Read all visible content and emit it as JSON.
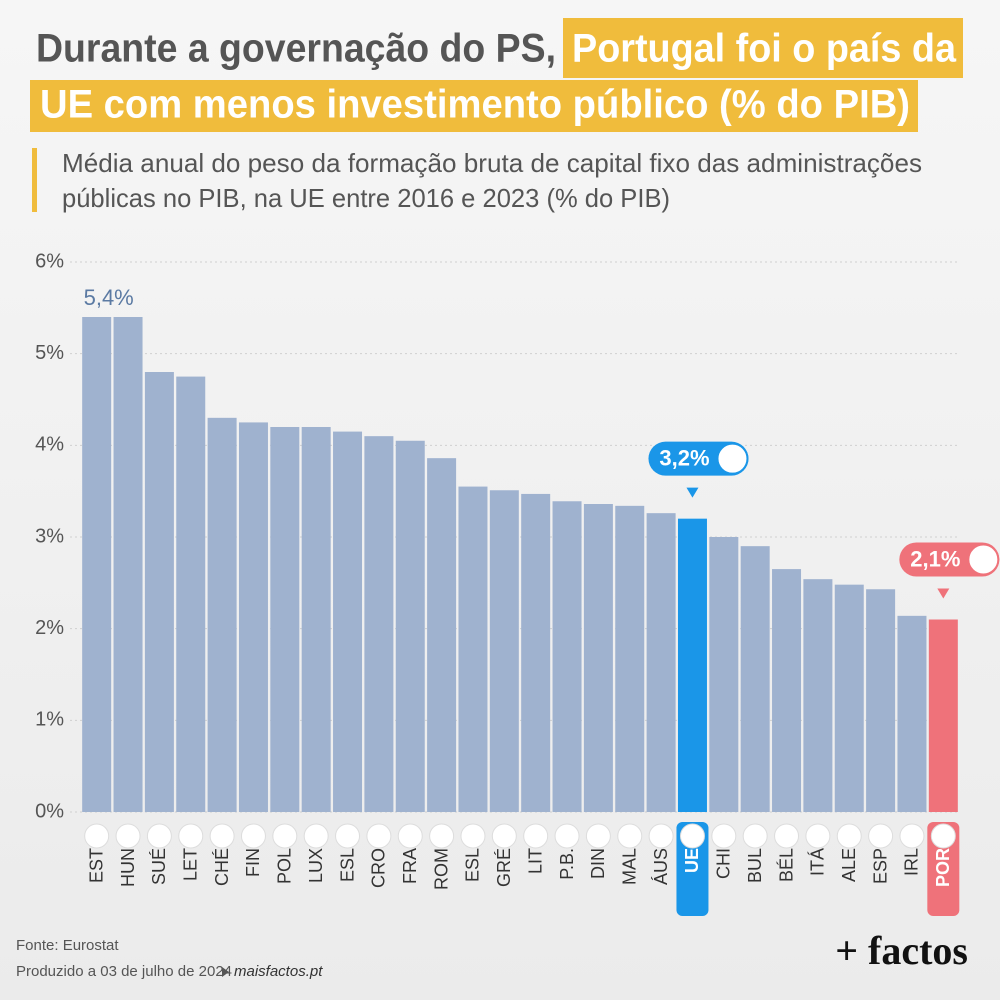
{
  "chart_data": {
    "type": "bar",
    "title_parts": [
      "Durante a governação do PS,",
      "Portugal foi o país da",
      "UE com menos investimento público (% do PIB)"
    ],
    "subtitle_lines": [
      "Média anual do peso da formação bruta de capital fixo das administrações",
      "públicas no PIB, na UE entre 2016 e 2023 (% do PIB)"
    ],
    "categories": [
      "EST",
      "HUN",
      "SUÉ",
      "LET",
      "CHÉ",
      "FIN",
      "POL",
      "LUX",
      "ESL",
      "CRO",
      "FRA",
      "ROM",
      "ESL",
      "GRÉ",
      "LIT",
      "P.B.",
      "DIN",
      "MAL",
      "ÁUS",
      "UE",
      "CHI",
      "BUL",
      "BÉL",
      "ITÁ",
      "ALE",
      "ESP",
      "IRL",
      "POR"
    ],
    "values": [
      5.4,
      5.4,
      4.8,
      4.75,
      4.3,
      4.25,
      4.2,
      4.2,
      4.15,
      4.1,
      4.05,
      3.86,
      3.55,
      3.51,
      3.47,
      3.39,
      3.36,
      3.34,
      3.26,
      3.2,
      3.0,
      2.9,
      2.65,
      2.54,
      2.48,
      2.43,
      2.14,
      2.1
    ],
    "value_labels": [
      "5,4%",
      null,
      null,
      null,
      null,
      null,
      null,
      null,
      null,
      null,
      null,
      null,
      null,
      null,
      null,
      null,
      null,
      null,
      null,
      "3,2%",
      null,
      null,
      null,
      null,
      null,
      null,
      null,
      "2,1%"
    ],
    "colors": [
      "#9fb2cf",
      "#9fb2cf",
      "#9fb2cf",
      "#9fb2cf",
      "#9fb2cf",
      "#9fb2cf",
      "#9fb2cf",
      "#9fb2cf",
      "#9fb2cf",
      "#9fb2cf",
      "#9fb2cf",
      "#9fb2cf",
      "#9fb2cf",
      "#9fb2cf",
      "#9fb2cf",
      "#9fb2cf",
      "#9fb2cf",
      "#9fb2cf",
      "#9fb2cf",
      "#1a96e8",
      "#9fb2cf",
      "#9fb2cf",
      "#9fb2cf",
      "#9fb2cf",
      "#9fb2cf",
      "#9fb2cf",
      "#9fb2cf",
      "#ef727a"
    ],
    "ylim": [
      0,
      6
    ],
    "yticks": [
      {
        "value": 0,
        "label": "0%"
      },
      {
        "value": 1,
        "label": "1%"
      },
      {
        "value": 2,
        "label": "2%"
      },
      {
        "value": 3,
        "label": "3%"
      },
      {
        "value": 4,
        "label": "4%"
      },
      {
        "value": 5,
        "label": "5%"
      },
      {
        "value": 6,
        "label": "6%"
      }
    ],
    "grid": true,
    "source": "Fonte: Eurostat",
    "produced": "Produzido a 03 de julho de 2024",
    "website": "maisfactos.pt",
    "logo": "+ factos"
  }
}
